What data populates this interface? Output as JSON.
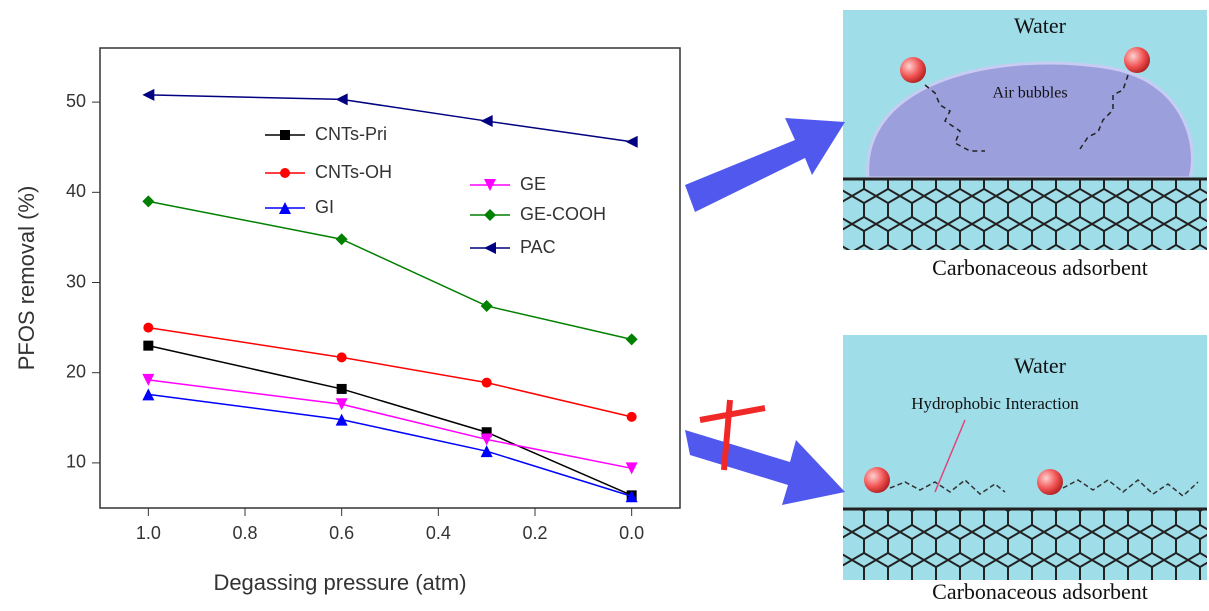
{
  "chart_data": {
    "type": "line",
    "xlabel": "Degassing pressure (atm)",
    "ylabel": "PFOS removal (%)",
    "x": [
      1.0,
      0.6,
      0.3,
      0.0
    ],
    "xlim": [
      1.1,
      -0.1
    ],
    "xticks": [
      {
        "value": 1.0,
        "label": "1.0"
      },
      {
        "value": 0.8,
        "label": "0.8"
      },
      {
        "value": 0.6,
        "label": "0.6"
      },
      {
        "value": 0.4,
        "label": "0.4"
      },
      {
        "value": 0.2,
        "label": "0.2"
      },
      {
        "value": 0.0,
        "label": "0.0"
      }
    ],
    "ylim": [
      5,
      56
    ],
    "yticks": [
      10,
      20,
      30,
      40,
      50
    ],
    "series": [
      {
        "name": "CNTs-Pri",
        "color": "#000000",
        "marker": "square",
        "values": [
          23,
          18.2,
          13.4,
          6.4
        ]
      },
      {
        "name": "CNTs-OH",
        "color": "#ff0000",
        "marker": "circle",
        "values": [
          25,
          21.7,
          18.9,
          15.1
        ]
      },
      {
        "name": "GI",
        "color": "#0000ff",
        "marker": "triangle-up",
        "values": [
          17.6,
          14.8,
          11.3,
          6.3
        ]
      },
      {
        "name": "GE",
        "color": "#ff00ff",
        "marker": "triangle-down",
        "values": [
          19.2,
          16.5,
          12.6,
          9.4
        ]
      },
      {
        "name": "GE-COOH",
        "color": "#008000",
        "marker": "diamond",
        "values": [
          39,
          34.8,
          27.4,
          23.7
        ]
      },
      {
        "name": "PAC",
        "color": "#000080",
        "marker": "triangle-left",
        "values": [
          50.8,
          50.3,
          47.9,
          45.6
        ]
      }
    ]
  },
  "diagram": {
    "top": {
      "medium": "Water",
      "bubble": "Air bubbles",
      "surface": "Carbonaceous adsorbent"
    },
    "bottom": {
      "medium": "Water",
      "interaction": "Hydrophobic Interaction",
      "surface": "Carbonaceous adsorbent"
    }
  }
}
